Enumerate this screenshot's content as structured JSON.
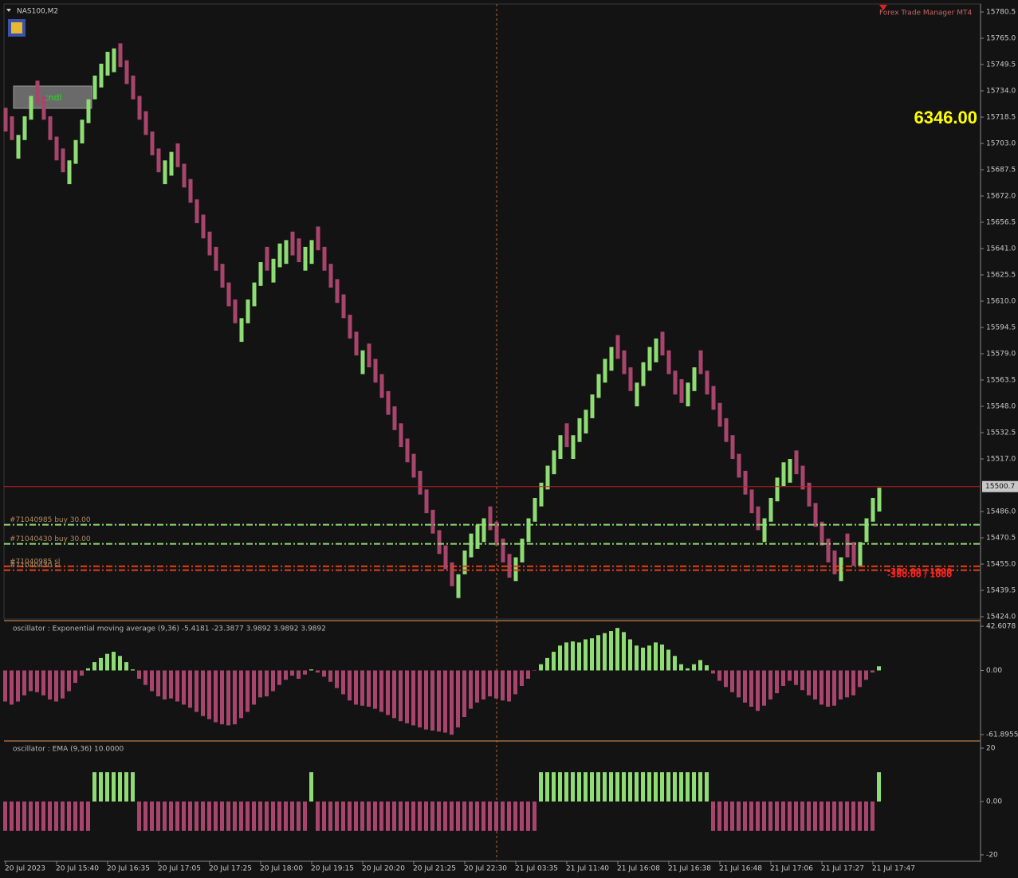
{
  "chart_data": [
    {
      "type": "renko",
      "title": "NAS100,M2",
      "ea_label": "Forex Trade Manager MT4",
      "button": "cndl",
      "big_label": "6346.00",
      "up_color": "#8fdc74",
      "down_color": "#a8456c",
      "brick": 14,
      "values": [
        15710,
        15705,
        15708,
        15719,
        15731,
        15726,
        15717,
        15705,
        15693,
        15686,
        15693,
        15705,
        15717,
        15729,
        15743,
        15750,
        15757,
        15759,
        15748,
        15738,
        15729,
        15717,
        15708,
        15696,
        15686,
        15693,
        15698,
        15689,
        15677,
        15668,
        15656,
        15647,
        15637,
        15628,
        15618,
        15607,
        15597,
        15600,
        15611,
        15621,
        15633,
        15628,
        15635,
        15644,
        15646,
        15637,
        15633,
        15642,
        15646,
        15640,
        15628,
        15618,
        15609,
        15600,
        15588,
        15578,
        15581,
        15571,
        15562,
        15553,
        15543,
        15534,
        15524,
        15515,
        15506,
        15496,
        15485,
        15473,
        15461,
        15452,
        15442,
        15449,
        15463,
        15473,
        15478,
        15482,
        15475,
        15466,
        15456,
        15447,
        15459,
        15470,
        15482,
        15494,
        15503,
        15513,
        15522,
        15531,
        15524,
        15531,
        15541,
        15546,
        15555,
        15567,
        15576,
        15583,
        15576,
        15567,
        15557,
        15562,
        15574,
        15583,
        15588,
        15578,
        15567,
        15555,
        15550,
        15562,
        15571,
        15567,
        15555,
        15546,
        15536,
        15527,
        15517,
        15506,
        15496,
        15485,
        15475,
        15482,
        15494,
        15506,
        15515,
        15517,
        15508,
        15499,
        15489,
        15477,
        15466,
        15456,
        15449,
        15459,
        15459,
        15454,
        15468,
        15482,
        15494,
        15500
      ],
      "ylim": [
        15422.6,
        15785.2
      ],
      "yticks": [
        {
          "value": 15424,
          "label": "15424.0"
        },
        15439.5,
        {
          "value": 15455,
          "label": "15455.0"
        },
        15470.5,
        {
          "value": 15486,
          "label": "15486.0"
        },
        {
          "value": 15517,
          "label": "15517.0"
        },
        15532.5,
        {
          "value": 15548,
          "label": "15548.0"
        },
        15563.5,
        {
          "value": 15579,
          "label": "15579.0"
        },
        15594.5,
        {
          "value": 15610,
          "label": "15610.0"
        },
        15625.5,
        {
          "value": 15641,
          "label": "15641.0"
        },
        15656.5,
        {
          "value": 15672,
          "label": "15672.0"
        },
        15687.5,
        {
          "value": 15703,
          "label": "15703.0"
        },
        15718.5,
        {
          "value": 15734,
          "label": "15734.0"
        },
        15749.5,
        {
          "value": 15765,
          "label": "15765.0"
        },
        15780.5
      ],
      "current_price": {
        "value": 15500.7,
        "label": "15500.7",
        "color": "#c0201a"
      },
      "crosshair_x": 77,
      "order_lines": [
        {
          "label": "#71040985 buy 30.00",
          "value": 15478.2,
          "color": "#8fdc74"
        },
        {
          "label": "#71040430 buy 30.00",
          "value": 15466.9,
          "color": "#8fdc74"
        },
        {
          "label": "#71040985 sl",
          "value": 15453.7,
          "color": "#e0401a",
          "right_label": "-380.00 / 1000"
        },
        {
          "label": "#71040430 sl",
          "value": 15451.4,
          "color": "#e0401a",
          "right_label": "-380.00 / 1000"
        }
      ]
    },
    {
      "type": "histogram",
      "title": "oscillator : Exponential moving average (9,36)  -5.4181 -23.3877 3.9892 3.9892 3.9892",
      "up_color": "#8fdc74",
      "down_color": "#a8456c",
      "values": [
        -30,
        -33,
        -30,
        -24,
        -20,
        -21,
        -24,
        -28,
        -30,
        -27,
        -20,
        -12,
        -5,
        2,
        8,
        12,
        16,
        18,
        14,
        8,
        1,
        -8,
        -14,
        -20,
        -25,
        -28,
        -27,
        -30,
        -33,
        -36,
        -40,
        -44,
        -47,
        -50,
        -52,
        -53,
        -52,
        -46,
        -40,
        -33,
        -26,
        -25,
        -20,
        -14,
        -9,
        -5,
        -8,
        -4,
        1,
        -2,
        -6,
        -11,
        -17,
        -23,
        -29,
        -33,
        -34,
        -35,
        -37,
        -40,
        -43,
        -46,
        -49,
        -51,
        -53,
        -55,
        -57,
        -58,
        -59,
        -60,
        -62,
        -55,
        -45,
        -37,
        -31,
        -28,
        -25,
        -27,
        -29,
        -30,
        -23,
        -15,
        -8,
        0,
        6,
        12,
        18,
        24,
        27,
        28,
        27,
        30,
        31,
        34,
        36,
        38,
        41,
        37,
        30,
        24,
        22,
        24,
        27,
        25,
        20,
        14,
        6,
        2,
        6,
        10,
        5,
        -3,
        -10,
        -16,
        -21,
        -26,
        -31,
        -35,
        -39,
        -34,
        -28,
        -22,
        -15,
        -10,
        -14,
        -19,
        -24,
        -28,
        -33,
        -35,
        -34,
        -28,
        -26,
        -24,
        -16,
        -9,
        -2,
        4
      ],
      "ylim": [
        -66.5,
        46.5
      ],
      "yticks": [
        42.6078,
        {
          "value": 0,
          "label": "0.00"
        },
        -61.8955
      ]
    },
    {
      "type": "histogram",
      "title": "oscillator : EMA (9,36)  10.0000",
      "up_color": "#8fdc74",
      "down_color": "#a8456c",
      "values": [
        -11,
        -11,
        -11,
        -11,
        -11,
        -11,
        -11,
        -11,
        -11,
        -11,
        -11,
        -11,
        -11,
        -11,
        11,
        11,
        11,
        11,
        11,
        11,
        11,
        -11,
        -11,
        -11,
        -11,
        -11,
        -11,
        -11,
        -11,
        -11,
        -11,
        -11,
        -11,
        -11,
        -11,
        -11,
        -11,
        -11,
        -11,
        -11,
        -11,
        -11,
        -11,
        -11,
        -11,
        -11,
        -11,
        -11,
        11,
        -11,
        -11,
        -11,
        -11,
        -11,
        -11,
        -11,
        -11,
        -11,
        -11,
        -11,
        -11,
        -11,
        -11,
        -11,
        -11,
        -11,
        -11,
        -11,
        -11,
        -11,
        -11,
        -11,
        -11,
        -11,
        -11,
        -11,
        -11,
        -11,
        -11,
        -11,
        -11,
        -11,
        -11,
        -11,
        11,
        11,
        11,
        11,
        11,
        11,
        11,
        11,
        11,
        11,
        11,
        11,
        11,
        11,
        11,
        11,
        11,
        11,
        11,
        11,
        11,
        11,
        11,
        11,
        11,
        11,
        11,
        -11,
        -11,
        -11,
        -11,
        -11,
        -11,
        -11,
        -11,
        -11,
        -11,
        -11,
        -11,
        -11,
        -11,
        -11,
        -11,
        -11,
        -11,
        -11,
        -11,
        -11,
        -11,
        -11,
        -11,
        -11,
        -11,
        11
      ],
      "ylim": [
        -22.1,
        22.1
      ],
      "yticks": [
        20,
        {
          "value": 0,
          "label": "0.00"
        },
        -20
      ],
      "xlim": [
        -0.25,
        152.875
      ],
      "xticks": [
        {
          "value": 0,
          "label": "20 Jul 2023"
        },
        {
          "value": 8,
          "label": "20 Jul 15:40"
        },
        {
          "value": 16,
          "label": "20 Jul 16:35"
        },
        {
          "value": 24,
          "label": "20 Jul 17:05"
        },
        {
          "value": 32,
          "label": "20 Jul 17:25"
        },
        {
          "value": 40,
          "label": "20 Jul 18:00"
        },
        {
          "value": 48,
          "label": "20 Jul 19:15"
        },
        {
          "value": 56,
          "label": "20 Jul 20:20"
        },
        {
          "value": 64,
          "label": "20 Jul 21:25"
        },
        {
          "value": 72,
          "label": "20 Jul 22:30"
        },
        {
          "value": 80,
          "label": "21 Jul 03:35"
        },
        {
          "value": 88,
          "label": "21 Jul 11:40"
        },
        {
          "value": 96,
          "label": "21 Jul 16:08"
        },
        {
          "value": 104,
          "label": "21 Jul 16:38"
        },
        {
          "value": 112,
          "label": "21 Jul 16:48"
        },
        {
          "value": 120,
          "label": "21 Jul 17:06"
        },
        {
          "value": 128,
          "label": "21 Jul 17:27"
        },
        {
          "value": 136,
          "label": "21 Jul 17:47"
        }
      ]
    }
  ]
}
